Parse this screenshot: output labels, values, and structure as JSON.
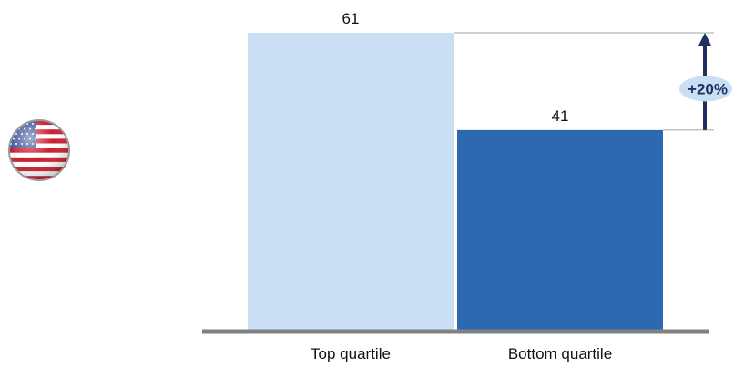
{
  "flag_icon": "us-flag-icon",
  "chart_data": {
    "type": "bar",
    "categories": [
      "Top quartile",
      "Bottom quartile"
    ],
    "values": [
      61,
      41
    ],
    "data_labels": [
      "61",
      "41"
    ],
    "colors": [
      "#c9e0f4",
      "#2c69b2"
    ],
    "ylim": [
      0,
      61
    ],
    "grid": false,
    "legend": "none",
    "annotation": {
      "label": "+20%",
      "from_value": 41,
      "to_value": 61,
      "arrow_color": "#1f3163",
      "bubble_color": "#c9e0f4"
    }
  }
}
